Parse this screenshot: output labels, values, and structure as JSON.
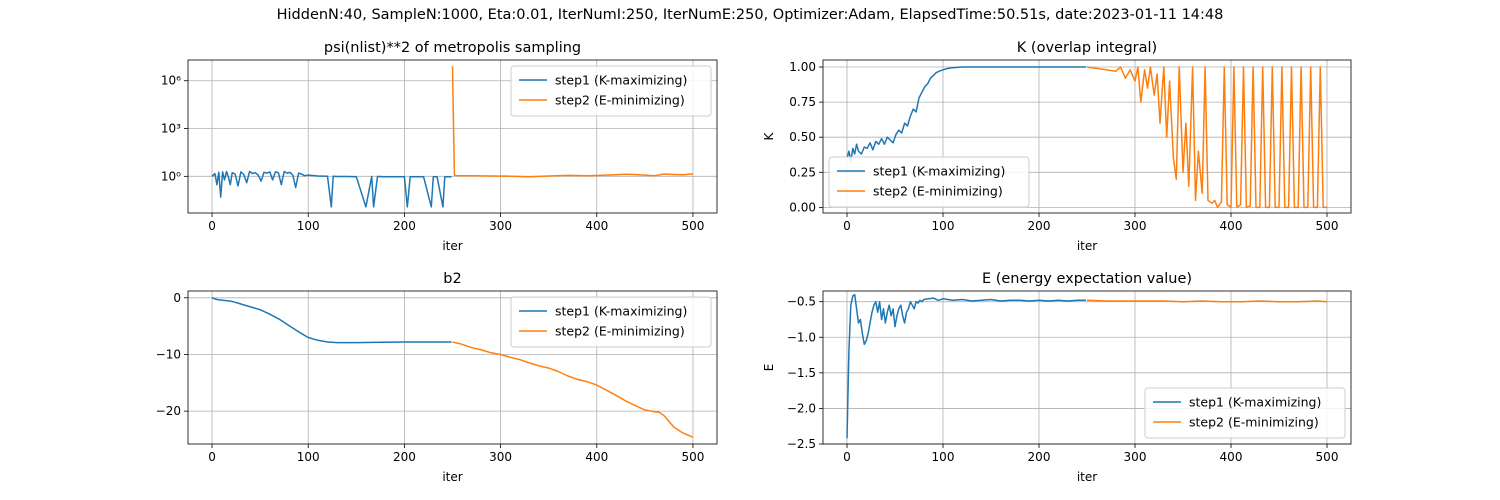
{
  "figure": {
    "suptitle": "HiddenN:40, SampleN:1000, Eta:0.01, IterNumI:250, IterNumE:250, Optimizer:Adam, ElapsedTime:50.51s, date:2023-01-11  14:48"
  },
  "colors": {
    "step1": "#1f77b4",
    "step2": "#ff7f0e",
    "grid": "#b0b0b0"
  },
  "chart_data": [
    {
      "type": "line",
      "title": "psi(nlist)**2 of metropolis sampling",
      "xlabel": "iter",
      "ylabel": "",
      "yscale": "log",
      "xlim": [
        -25,
        525
      ],
      "ylim": [
        0.005,
        20000000
      ],
      "xticks": [
        0,
        100,
        200,
        300,
        400,
        500
      ],
      "yticks": [
        1,
        1000,
        1000000
      ],
      "ytick_labels": [
        "10⁰",
        "10³",
        "10⁶"
      ],
      "grid": true,
      "legend": "upper right",
      "series": [
        {
          "name": "step1 (K-maximizing)",
          "x": [
            0,
            3,
            5,
            7,
            9,
            11,
            13,
            15,
            17,
            19,
            21,
            24,
            27,
            30,
            33,
            36,
            39,
            42,
            45,
            48,
            51,
            54,
            57,
            60,
            63,
            66,
            69,
            72,
            75,
            78,
            81,
            84,
            87,
            90,
            93,
            96,
            100,
            110,
            120,
            124,
            126,
            130,
            140,
            150,
            160,
            166,
            168,
            172,
            178,
            190,
            200,
            203,
            206,
            210,
            220,
            228,
            230,
            234,
            240,
            242,
            245,
            249
          ],
          "y": [
            1.0,
            1.5,
            0.3,
            1.8,
            0.05,
            1.9,
            0.6,
            2.0,
            0.9,
            0.3,
            1.7,
            1.4,
            0.25,
            1.9,
            1.3,
            0.4,
            2.0,
            1.5,
            1.7,
            1.2,
            0.5,
            1.8,
            1.6,
            1.9,
            0.6,
            1.9,
            1.7,
            0.3,
            2.0,
            1.6,
            1.8,
            1.2,
            0.2,
            1.6,
            1.4,
            1.1,
            1.2,
            1.05,
            1.0,
            0.012,
            1.0,
            0.98,
            0.97,
            0.95,
            0.012,
            0.97,
            0.012,
            0.97,
            0.95,
            0.93,
            0.95,
            0.012,
            0.95,
            0.93,
            0.94,
            0.012,
            0.95,
            0.93,
            0.012,
            0.95,
            0.93,
            0.93
          ]
        },
        {
          "name": "step2 (E-minimizing)",
          "x": [
            250,
            252,
            255,
            270,
            290,
            310,
            330,
            350,
            370,
            390,
            410,
            430,
            440,
            450,
            460,
            470,
            480,
            490,
            495,
            500
          ],
          "y": [
            8000000,
            1.2,
            1.1,
            1.08,
            1.05,
            1.02,
            0.95,
            1.05,
            1.15,
            1.1,
            1.2,
            1.35,
            1.3,
            1.2,
            1.1,
            1.4,
            1.3,
            1.25,
            1.35,
            1.4
          ]
        }
      ]
    },
    {
      "type": "line",
      "title": "K (overlap integral)",
      "xlabel": "iter",
      "ylabel": "K",
      "xlim": [
        -25,
        525
      ],
      "ylim": [
        -0.04,
        1.05
      ],
      "xticks": [
        0,
        100,
        200,
        300,
        400,
        500
      ],
      "yticks": [
        0.0,
        0.25,
        0.5,
        0.75,
        1.0
      ],
      "ytick_labels": [
        "0.00",
        "0.25",
        "0.50",
        "0.75",
        "1.00"
      ],
      "grid": true,
      "legend": "lower left",
      "series": [
        {
          "name": "step1 (K-maximizing)",
          "x": [
            0,
            2,
            4,
            6,
            8,
            10,
            12,
            15,
            18,
            21,
            24,
            27,
            30,
            33,
            36,
            39,
            42,
            45,
            48,
            51,
            54,
            57,
            60,
            63,
            66,
            69,
            72,
            75,
            78,
            81,
            84,
            87,
            90,
            93,
            96,
            100,
            105,
            110,
            120,
            130,
            150,
            200,
            249
          ],
          "y": [
            0.35,
            0.4,
            0.33,
            0.42,
            0.38,
            0.45,
            0.4,
            0.38,
            0.43,
            0.42,
            0.46,
            0.41,
            0.47,
            0.45,
            0.49,
            0.45,
            0.5,
            0.48,
            0.46,
            0.52,
            0.55,
            0.53,
            0.6,
            0.58,
            0.65,
            0.7,
            0.68,
            0.78,
            0.82,
            0.86,
            0.88,
            0.92,
            0.94,
            0.96,
            0.97,
            0.98,
            0.99,
            0.995,
            1.0,
            1.0,
            1.0,
            1.0,
            1.0
          ]
        },
        {
          "name": "step2 (E-minimizing)",
          "x": [
            250,
            260,
            270,
            280,
            285,
            290,
            295,
            300,
            303,
            306,
            310,
            313,
            316,
            320,
            323,
            326,
            330,
            333,
            336,
            340,
            343,
            346,
            350,
            353,
            356,
            360,
            363,
            366,
            370,
            373,
            376,
            380,
            383,
            386,
            390,
            393,
            396,
            400,
            403,
            406,
            410,
            413,
            416,
            420,
            423,
            426,
            430,
            433,
            436,
            440,
            443,
            446,
            450,
            453,
            456,
            460,
            463,
            466,
            470,
            473,
            476,
            480,
            483,
            486,
            490,
            493,
            496,
            500
          ],
          "y": [
            1.0,
            0.99,
            0.98,
            0.97,
            1.0,
            0.92,
            0.98,
            0.9,
            1.0,
            0.75,
            0.98,
            0.85,
            1.0,
            0.8,
            0.95,
            0.6,
            1.0,
            0.5,
            0.9,
            0.35,
            0.2,
            1.0,
            0.25,
            0.6,
            0.15,
            1.0,
            0.05,
            0.4,
            0.1,
            1.0,
            0.05,
            0.03,
            0.05,
            0.0,
            0.04,
            1.0,
            0.02,
            0.0,
            1.0,
            0.0,
            0.02,
            1.0,
            0.0,
            0.01,
            1.0,
            0.0,
            0.0,
            1.0,
            0.0,
            0.0,
            1.0,
            0.0,
            0.0,
            1.0,
            0.0,
            0.0,
            1.0,
            0.0,
            0.0,
            1.0,
            0.0,
            0.0,
            1.0,
            0.0,
            0.0,
            1.0,
            0.0,
            0.0
          ]
        }
      ]
    },
    {
      "type": "line",
      "title": "b2",
      "xlabel": "iter",
      "ylabel": "",
      "xlim": [
        -25,
        525
      ],
      "ylim": [
        -25.8,
        1.2
      ],
      "xticks": [
        0,
        100,
        200,
        300,
        400,
        500
      ],
      "yticks": [
        0,
        -10,
        -20
      ],
      "ytick_labels": [
        "0",
        "−10",
        "−20"
      ],
      "grid": true,
      "legend": "upper right",
      "series": [
        {
          "name": "step1 (K-maximizing)",
          "x": [
            0,
            5,
            10,
            20,
            30,
            40,
            50,
            60,
            70,
            80,
            90,
            100,
            110,
            120,
            130,
            150,
            200,
            249
          ],
          "y": [
            0,
            -0.3,
            -0.4,
            -0.6,
            -1.1,
            -1.6,
            -2.1,
            -2.9,
            -3.8,
            -4.9,
            -6.0,
            -7.0,
            -7.5,
            -7.8,
            -7.9,
            -7.9,
            -7.8,
            -7.8
          ]
        },
        {
          "name": "step2 (E-minimizing)",
          "x": [
            250,
            260,
            270,
            280,
            290,
            300,
            310,
            320,
            330,
            340,
            350,
            360,
            370,
            380,
            390,
            400,
            410,
            420,
            430,
            440,
            450,
            460,
            465,
            470,
            475,
            480,
            490,
            500
          ],
          "y": [
            -7.8,
            -8.2,
            -8.8,
            -9.2,
            -9.7,
            -10.0,
            -10.5,
            -10.9,
            -11.5,
            -12.0,
            -12.4,
            -13.0,
            -13.8,
            -14.4,
            -14.8,
            -15.4,
            -16.3,
            -17.2,
            -18.2,
            -19.0,
            -19.8,
            -20.1,
            -20.2,
            -20.8,
            -21.8,
            -22.8,
            -23.9,
            -24.6
          ]
        }
      ]
    },
    {
      "type": "line",
      "title": "E (energy expectation value)",
      "xlabel": "iter",
      "ylabel": "E",
      "xlim": [
        -25,
        525
      ],
      "ylim": [
        -2.5,
        -0.35
      ],
      "xticks": [
        0,
        100,
        200,
        300,
        400,
        500
      ],
      "yticks": [
        -0.5,
        -1.0,
        -1.5,
        -2.0,
        -2.5
      ],
      "ytick_labels": [
        "−0.5",
        "−1.0",
        "−1.5",
        "−2.0",
        "−2.5"
      ],
      "grid": true,
      "legend": "lower right",
      "series": [
        {
          "name": "step1 (K-maximizing)",
          "x": [
            0,
            2,
            4,
            6,
            8,
            10,
            12,
            14,
            16,
            18,
            20,
            22,
            24,
            26,
            28,
            30,
            32,
            34,
            36,
            38,
            40,
            42,
            44,
            46,
            48,
            50,
            52,
            54,
            56,
            58,
            60,
            62,
            64,
            66,
            68,
            70,
            72,
            74,
            76,
            78,
            80,
            85,
            90,
            95,
            100,
            110,
            120,
            130,
            140,
            150,
            160,
            170,
            180,
            190,
            200,
            210,
            220,
            230,
            240,
            249
          ],
          "y": [
            -2.42,
            -1.2,
            -0.55,
            -0.42,
            -0.4,
            -0.6,
            -0.8,
            -0.75,
            -0.95,
            -1.1,
            -1.05,
            -0.95,
            -0.8,
            -0.65,
            -0.55,
            -0.5,
            -0.65,
            -0.5,
            -0.75,
            -0.6,
            -0.8,
            -0.65,
            -0.55,
            -0.7,
            -0.6,
            -0.85,
            -0.7,
            -0.6,
            -0.55,
            -0.7,
            -0.8,
            -0.65,
            -0.6,
            -0.5,
            -0.55,
            -0.6,
            -0.5,
            -0.52,
            -0.48,
            -0.5,
            -0.47,
            -0.46,
            -0.45,
            -0.48,
            -0.46,
            -0.48,
            -0.47,
            -0.49,
            -0.48,
            -0.47,
            -0.49,
            -0.48,
            -0.48,
            -0.49,
            -0.48,
            -0.49,
            -0.48,
            -0.49,
            -0.48,
            -0.48
          ]
        },
        {
          "name": "step2 (E-minimizing)",
          "x": [
            250,
            270,
            290,
            310,
            330,
            350,
            370,
            390,
            410,
            430,
            450,
            470,
            490,
            500
          ],
          "y": [
            -0.48,
            -0.49,
            -0.49,
            -0.49,
            -0.49,
            -0.5,
            -0.49,
            -0.5,
            -0.5,
            -0.49,
            -0.5,
            -0.5,
            -0.49,
            -0.5
          ]
        }
      ]
    }
  ]
}
